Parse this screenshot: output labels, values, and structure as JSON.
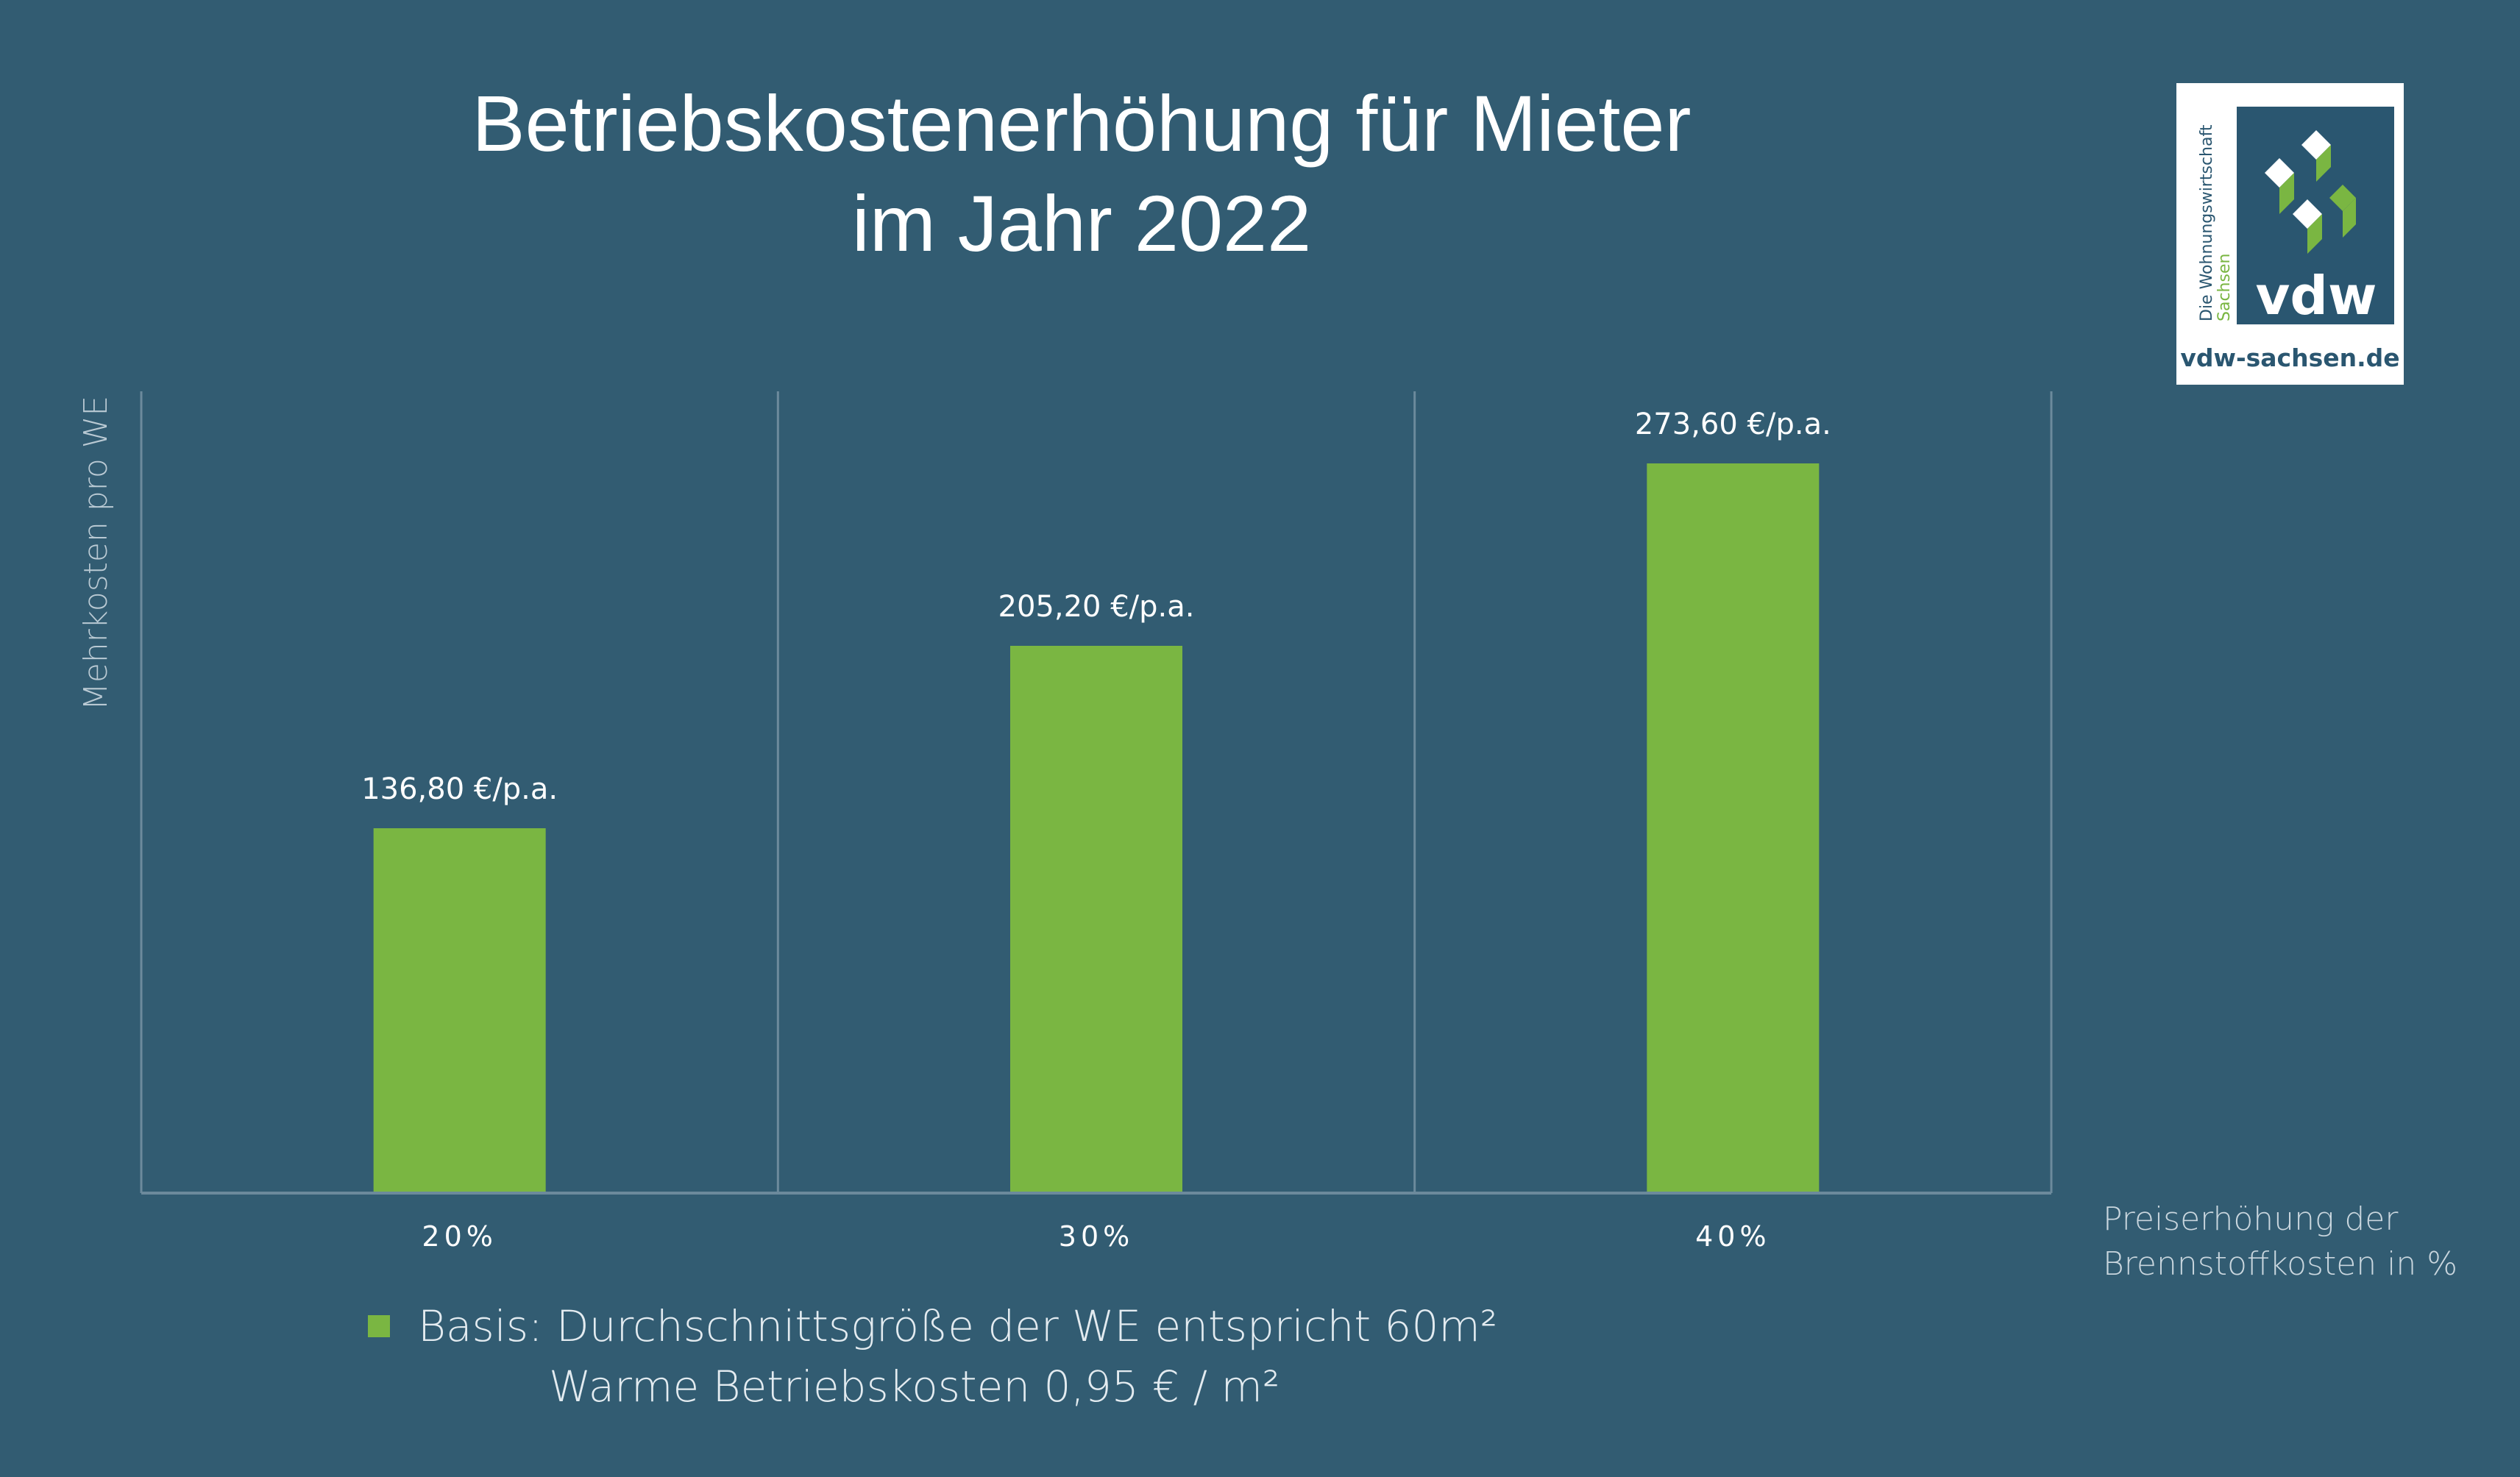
{
  "title_line1": "Betriebskostenerhöhung für Mieter",
  "title_line2": "im Jahr 2022",
  "logo": {
    "tagline_1": "Die Wohnungswirtschaft",
    "tagline_2": "Sachsen",
    "wordmark": "vdw",
    "url": "vdw-sachsen.de"
  },
  "colors": {
    "background": "#325c72",
    "bar": "#7ab642",
    "grid": "#6c8a9c",
    "text": "#ffffff"
  },
  "footnote": {
    "line1": "Basis: Durchschnittsgröße der WE entspricht 60m²",
    "line2": "Warme Betriebskosten 0,95 € / m²"
  },
  "chart_data": {
    "type": "bar",
    "title": "Betriebskostenerhöhung für Mieter im Jahr 2022",
    "xlabel": "Preiserhöhung der Brennstoffkosten in %",
    "xlabel_lines": [
      "Preiserhöhung der",
      "Brennstoffkosten in %"
    ],
    "ylabel": "Mehrkosten pro WE",
    "categories": [
      "20%",
      "30%",
      "40%"
    ],
    "values": [
      136.8,
      205.2,
      273.6
    ],
    "value_labels": [
      "136,80 €/p.a.",
      "205,20 €/p.a.",
      "273,60 €/p.a."
    ],
    "ylim": [
      0,
      273.6
    ],
    "grid": "vertical",
    "legend": "none"
  }
}
